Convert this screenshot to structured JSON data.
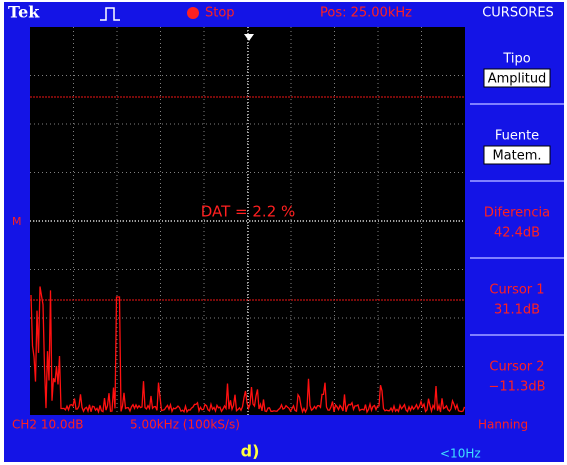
{
  "header": {
    "brand": "Tek",
    "status": "Stop",
    "position": "Pos: 25.00kHz",
    "menu_title": "CURSORES"
  },
  "menu": [
    {
      "label": "Tipo",
      "value": "Amplitud"
    },
    {
      "label": "Fuente",
      "value": "Matem."
    },
    {
      "label": "Diferencia",
      "value": "42.4dB"
    },
    {
      "label": "Cursor 1",
      "value": "31.1dB"
    },
    {
      "label": "Cursor 2",
      "value": "−11.3dB"
    }
  ],
  "screen": {
    "annotation": "DAT = 2.2 %",
    "marker": "M"
  },
  "footer": {
    "channel": "CH2 10.0dB",
    "timebase": "5.00kHz (100kS/s)",
    "window": "Hanning",
    "caption": "d)",
    "resolution": "<10Hz"
  }
}
